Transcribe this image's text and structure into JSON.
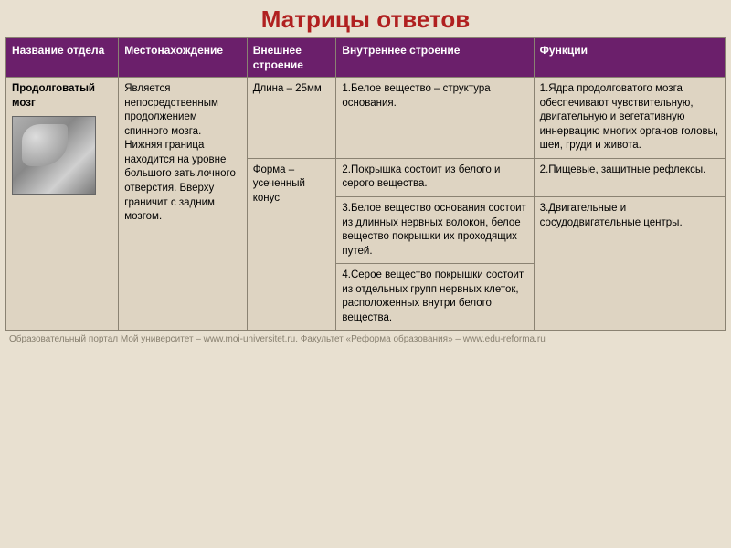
{
  "title": "Матрицы ответов",
  "columns": {
    "name": "Название отдела",
    "location": "Местонахождение",
    "external": "Внешнее строение",
    "internal": "Внутреннее строение",
    "functions": "Функции"
  },
  "row": {
    "name": "Продолговатый мозг",
    "location": "Является непосредственным продолжением спинного мозга. Нижняя граница находится на уровне большого затылочного отверстия. Вверху граничит с задним мозгом.",
    "ext1": "Длина – 25мм",
    "ext2": "Форма – усеченный конус",
    "int1": "1.Белое вещество – структура основания.",
    "int2": "2.Покрышка состоит из белого и серого вещества.",
    "int3": "3.Белое вещество основания состоит из длинных нервных волокон, белое вещество покрышки их проходящих путей.",
    "int4": "4.Серое вещество покрышки состоит из отдельных групп нервных клеток, расположенных внутри белого вещества.",
    "func1": "1.Ядра продолговатого мозга обеспечивают чувствительную, двигательную и вегетативную иннервацию многих органов головы, шеи, груди и живота.",
    "func2": "2.Пищевые, защитные рефлексы.",
    "func3": "3.Двигательные и сосудодвигательные центры."
  },
  "footer": "Образовательный портал Мой университет – www.moi-universitet.ru. Факультет «Реформа образования» – www.edu-reforma.ru",
  "colors": {
    "header_bg": "#6b1f6b",
    "header_text": "#ffffff",
    "body_bg": "#ded4c2",
    "page_bg": "#e8e0d0",
    "title_color": "#b02020",
    "border_color": "#8a8272"
  }
}
